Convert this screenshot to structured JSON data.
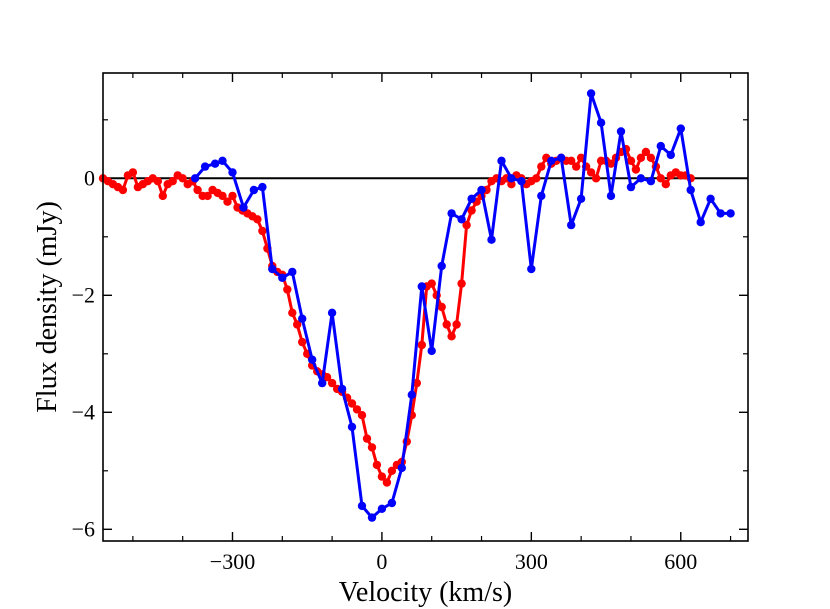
{
  "chart_data": {
    "type": "line",
    "title": "",
    "xlabel": "Velocity (km/s)",
    "ylabel": "Flux density (mJy)",
    "xlim": [
      -560,
      735
    ],
    "ylim": [
      -6.2,
      1.8
    ],
    "xticks_major": [
      -300,
      0,
      300,
      600
    ],
    "xtick_labels": [
      "−300",
      "0",
      "300",
      "600"
    ],
    "xticks_minor": [
      -500,
      -400,
      -200,
      -100,
      100,
      200,
      400,
      500,
      700
    ],
    "yticks_major": [
      -6,
      -4,
      -2,
      0
    ],
    "ytick_labels": [
      "−6",
      "−4",
      "−2",
      "0"
    ],
    "yticks_minor": [
      -5,
      -3,
      -1,
      1
    ],
    "reference_line_y": 0,
    "series": [
      {
        "name": "red",
        "color": "#ff0000",
        "x": [
          -560,
          -550,
          -540,
          -530,
          -520,
          -510,
          -500,
          -490,
          -480,
          -470,
          -460,
          -450,
          -440,
          -430,
          -420,
          -410,
          -400,
          -390,
          -380,
          -370,
          -360,
          -350,
          -340,
          -330,
          -320,
          -310,
          -300,
          -290,
          -280,
          -270,
          -260,
          -250,
          -240,
          -230,
          -220,
          -210,
          -200,
          -190,
          -180,
          -170,
          -160,
          -150,
          -140,
          -130,
          -120,
          -110,
          -100,
          -90,
          -80,
          -70,
          -60,
          -50,
          -40,
          -30,
          -20,
          -10,
          0,
          10,
          20,
          30,
          40,
          50,
          60,
          70,
          80,
          90,
          100,
          110,
          120,
          130,
          140,
          150,
          160,
          170,
          180,
          190,
          200,
          210,
          220,
          230,
          240,
          250,
          260,
          270,
          280,
          290,
          300,
          310,
          320,
          330,
          340,
          350,
          360,
          370,
          380,
          390,
          400,
          410,
          420,
          430,
          440,
          450,
          460,
          470,
          480,
          490,
          500,
          510,
          520,
          530,
          540,
          550,
          560,
          570,
          580,
          590,
          600,
          610,
          620
        ],
        "y": [
          0,
          -0.05,
          -0.1,
          -0.15,
          -0.2,
          0.05,
          0.1,
          -0.15,
          -0.1,
          -0.05,
          0.0,
          -0.05,
          -0.3,
          -0.1,
          -0.05,
          0.05,
          0.0,
          -0.1,
          -0.05,
          -0.2,
          -0.3,
          -0.3,
          -0.2,
          -0.25,
          -0.3,
          -0.4,
          -0.3,
          -0.5,
          -0.55,
          -0.6,
          -0.65,
          -0.7,
          -0.9,
          -1.2,
          -1.5,
          -1.6,
          -1.65,
          -1.9,
          -2.3,
          -2.5,
          -2.8,
          -3.0,
          -3.2,
          -3.3,
          -3.35,
          -3.4,
          -3.5,
          -3.6,
          -3.65,
          -3.75,
          -3.85,
          -3.95,
          -4.05,
          -4.45,
          -4.6,
          -4.9,
          -5.1,
          -5.2,
          -5.0,
          -4.9,
          -4.85,
          -4.5,
          -4.05,
          -3.5,
          -2.85,
          -1.85,
          -1.8,
          -2.0,
          -2.2,
          -2.5,
          -2.7,
          -2.5,
          -1.8,
          -0.8,
          -0.55,
          -0.4,
          -0.3,
          -0.2,
          -0.05,
          0.0,
          -0.05,
          0.0,
          -0.1,
          0.05,
          0.0,
          -0.1,
          -0.05,
          0.0,
          0.2,
          0.35,
          0.25,
          0.3,
          0.35,
          0.3,
          0.3,
          0.2,
          0.35,
          0.2,
          0.1,
          0.0,
          0.3,
          0.3,
          0.25,
          0.35,
          0.45,
          0.5,
          0.3,
          0.15,
          0.35,
          0.45,
          0.35,
          0.2,
          0.0,
          -0.1,
          0.05,
          0.1,
          0.05,
          0.05,
          0.0
        ]
      },
      {
        "name": "blue",
        "color": "#0000ff",
        "x": [
          -375,
          -355,
          -335,
          -320,
          -300,
          -278,
          -257,
          -240,
          -220,
          -200,
          -180,
          -160,
          -140,
          -120,
          -100,
          -80,
          -60,
          -40,
          -20,
          0,
          20,
          40,
          60,
          80,
          100,
          120,
          140,
          160,
          180,
          200,
          220,
          240,
          260,
          280,
          300,
          320,
          340,
          360,
          380,
          400,
          420,
          440,
          460,
          480,
          500,
          520,
          540,
          560,
          580,
          600,
          620,
          640,
          660,
          680,
          700
        ],
        "y": [
          0.0,
          0.2,
          0.25,
          0.3,
          0.1,
          -0.5,
          -0.2,
          -0.15,
          -1.55,
          -1.7,
          -1.6,
          -2.4,
          -3.1,
          -3.5,
          -2.3,
          -3.6,
          -4.25,
          -5.6,
          -5.8,
          -5.65,
          -5.55,
          -4.95,
          -3.7,
          -1.85,
          -2.95,
          -1.5,
          -0.6,
          -0.7,
          -0.35,
          -0.2,
          -1.05,
          0.3,
          0.0,
          -0.05,
          -1.55,
          -0.3,
          0.3,
          0.35,
          -0.8,
          -0.35,
          1.45,
          0.95,
          -0.3,
          0.8,
          -0.15,
          0.0,
          -0.05,
          0.55,
          0.4,
          0.85,
          -0.2,
          -0.75,
          -0.35,
          -0.6,
          -0.6
        ]
      }
    ]
  }
}
